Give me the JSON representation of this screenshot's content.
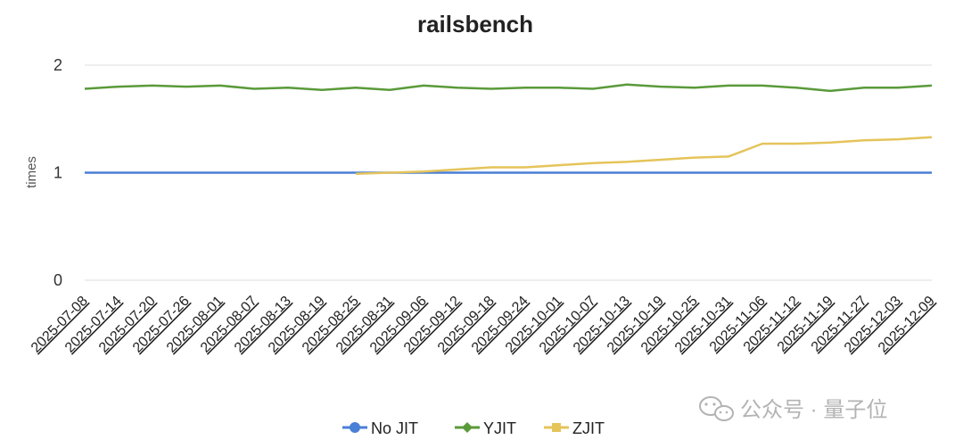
{
  "chart_data": {
    "type": "line",
    "title": "railsbench",
    "xlabel": "",
    "ylabel": "times",
    "ylim": [
      0,
      2
    ],
    "y_ticks": [
      "0",
      "1",
      "2"
    ],
    "x_tick_labels": [
      "2025-07-08",
      "2025-07-14",
      "2025-07-20",
      "2025-07-26",
      "2025-08-01",
      "2025-08-07",
      "2025-08-13",
      "2025-08-19",
      "2025-08-25",
      "2025-08-31",
      "2025-09-06",
      "2025-09-12",
      "2025-09-18",
      "2025-09-24",
      "2025-10-01",
      "2025-10-07",
      "2025-10-13",
      "2025-10-19",
      "2025-10-25",
      "2025-10-31",
      "2025-11-06",
      "2025-11-12",
      "2025-11-19",
      "2025-11-27",
      "2025-12-03",
      "2025-12-09"
    ],
    "grid": true,
    "legend_position": "bottom",
    "series": [
      {
        "name": "No JIT",
        "color": "#4a7fd6",
        "marker": "circle",
        "values": [
          1.0,
          1.0,
          1.0,
          1.0,
          1.0,
          1.0,
          1.0,
          1.0,
          1.0,
          1.0,
          1.0,
          1.0,
          1.0,
          1.0,
          1.0,
          1.0,
          1.0,
          1.0,
          1.0,
          1.0,
          1.0,
          1.0,
          1.0,
          1.0,
          1.0,
          1.0
        ]
      },
      {
        "name": "YJIT",
        "color": "#5a9a3a",
        "marker": "diamond",
        "values": [
          1.78,
          1.8,
          1.81,
          1.8,
          1.81,
          1.78,
          1.79,
          1.77,
          1.79,
          1.77,
          1.81,
          1.79,
          1.78,
          1.79,
          1.79,
          1.78,
          1.82,
          1.8,
          1.79,
          1.81,
          1.81,
          1.79,
          1.76,
          1.79,
          1.79,
          1.81
        ]
      },
      {
        "name": "ZJIT",
        "color": "#e5c45a",
        "marker": "square",
        "values": [
          null,
          null,
          null,
          null,
          null,
          null,
          null,
          null,
          0.99,
          1.0,
          1.01,
          1.03,
          1.05,
          1.05,
          1.07,
          1.09,
          1.1,
          1.12,
          1.14,
          1.15,
          1.27,
          1.27,
          1.28,
          1.3,
          1.31,
          1.33
        ]
      }
    ]
  },
  "watermark": {
    "text": "公众号 · 量子位",
    "icon": "wechat-icon"
  }
}
